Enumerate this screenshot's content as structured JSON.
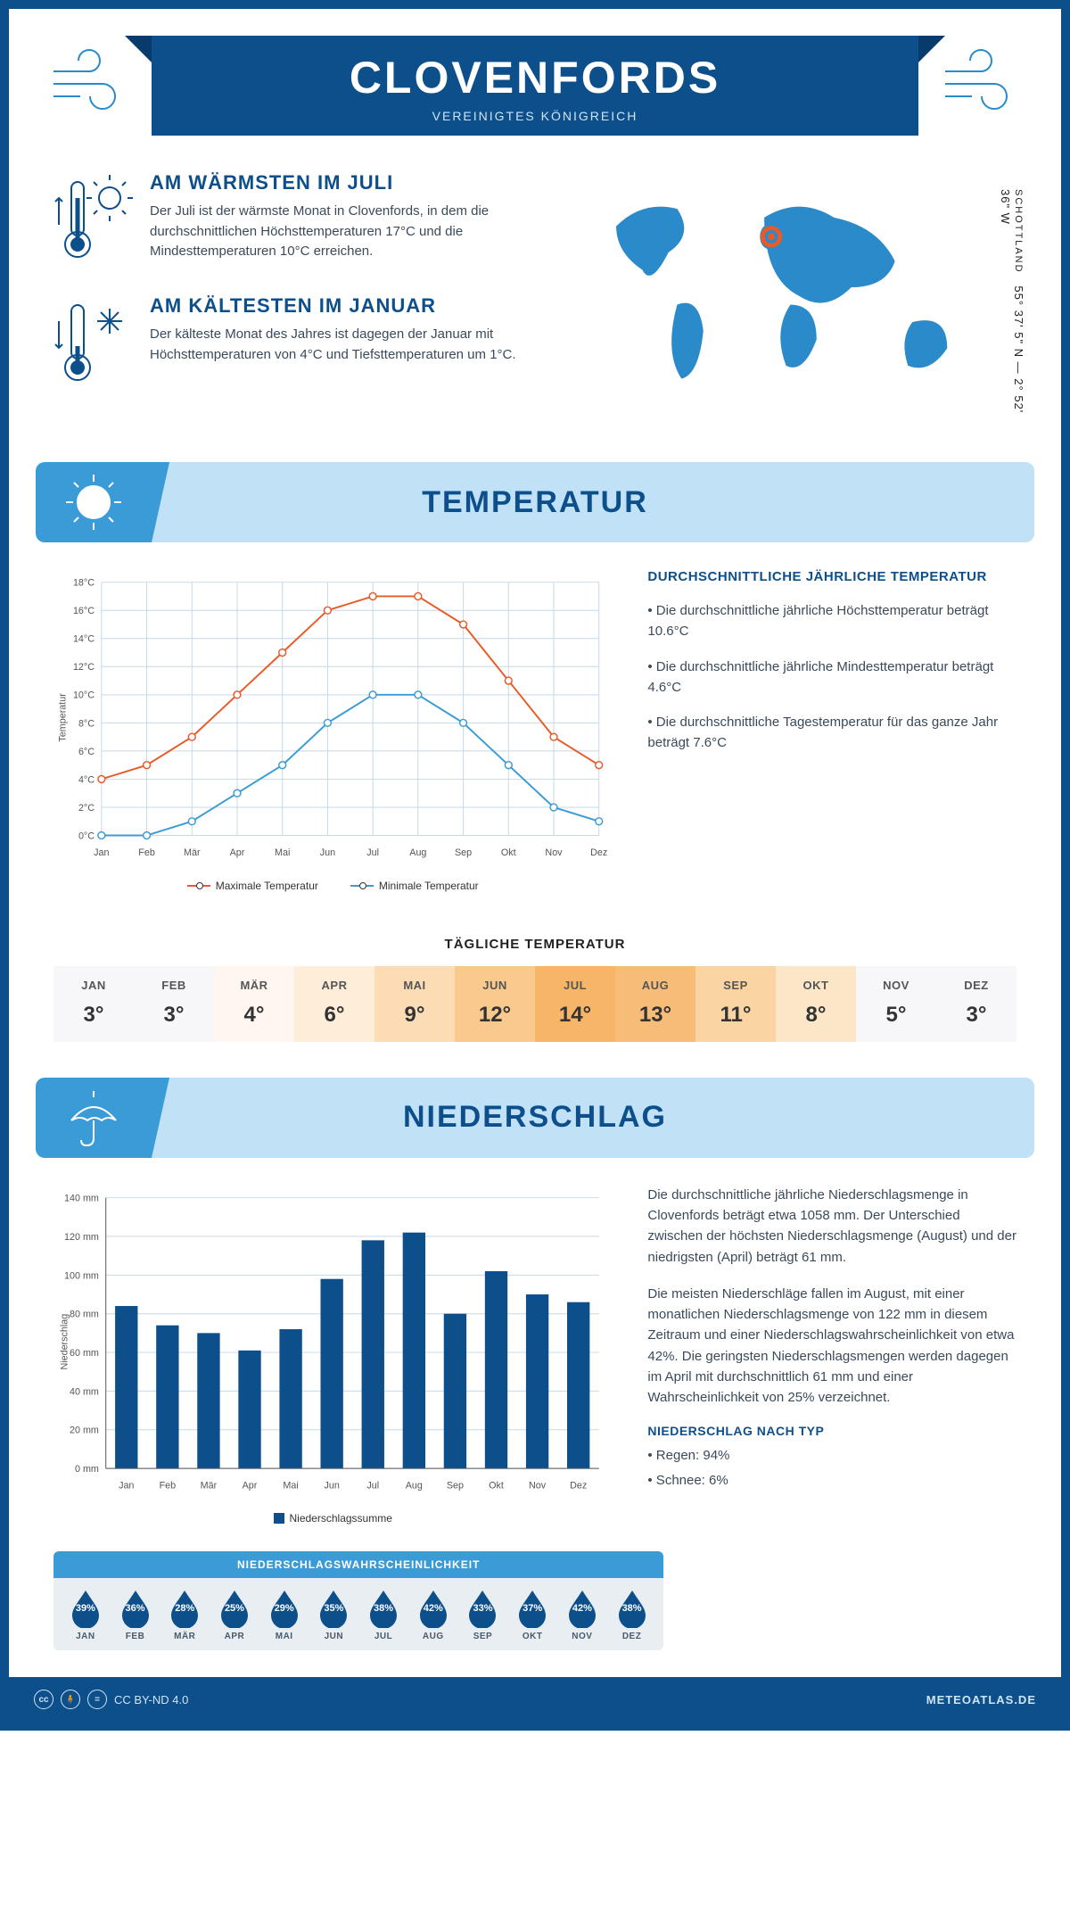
{
  "header": {
    "title": "CLOVENFORDS",
    "subtitle": "VEREINIGTES KÖNIGREICH"
  },
  "coords": {
    "lat": "55° 37' 5\" N — 2° 52' 36\" W",
    "country": "SCHOTTLAND"
  },
  "intro": {
    "warm": {
      "heading": "AM WÄRMSTEN IM JULI",
      "text": "Der Juli ist der wärmste Monat in Clovenfords, in dem die durchschnittlichen Höchsttemperaturen 17°C und die Mindesttemperaturen 10°C erreichen."
    },
    "cold": {
      "heading": "AM KÄLTESTEN IM JANUAR",
      "text": "Der kälteste Monat des Jahres ist dagegen der Januar mit Höchsttemperaturen von 4°C und Tiefsttemperaturen um 1°C."
    }
  },
  "sections": {
    "temp": "TEMPERATUR",
    "precip": "NIEDERSCHLAG"
  },
  "months": [
    "Jan",
    "Feb",
    "Mär",
    "Apr",
    "Mai",
    "Jun",
    "Jul",
    "Aug",
    "Sep",
    "Okt",
    "Nov",
    "Dez"
  ],
  "months_upper": [
    "JAN",
    "FEB",
    "MÄR",
    "APR",
    "MAI",
    "JUN",
    "JUL",
    "AUG",
    "SEP",
    "OKT",
    "NOV",
    "DEZ"
  ],
  "temp_chart": {
    "type": "line",
    "ylabel": "Temperatur",
    "tick_fontsize": 11,
    "ylim": [
      0,
      18
    ],
    "ytick_step": 2,
    "ysuffix": "°C",
    "grid_color": "#c6d8e8",
    "series": [
      {
        "name": "Maximale Temperatur",
        "color": "#e85a2a",
        "values": [
          4,
          5,
          7,
          10,
          13,
          16,
          17,
          17,
          15,
          11,
          7,
          5
        ]
      },
      {
        "name": "Minimale Temperatur",
        "color": "#3b9bd6",
        "values": [
          0,
          0,
          1,
          3,
          5,
          8,
          10,
          10,
          8,
          5,
          2,
          1
        ]
      }
    ],
    "marker_size": 4,
    "line_width": 2
  },
  "temp_info": {
    "heading": "DURCHSCHNITTLICHE JÄHRLICHE TEMPERATUR",
    "bullets": [
      "• Die durchschnittliche jährliche Höchsttemperatur beträgt 10.6°C",
      "• Die durchschnittliche jährliche Mindesttemperatur beträgt 4.6°C",
      "• Die durchschnittliche Tagestemperatur für das ganze Jahr beträgt 7.6°C"
    ]
  },
  "daily": {
    "title": "TÄGLICHE TEMPERATUR",
    "values": [
      "3°",
      "3°",
      "4°",
      "6°",
      "9°",
      "12°",
      "14°",
      "13°",
      "11°",
      "8°",
      "5°",
      "3°"
    ],
    "bg_colors": [
      "#f7f7fa",
      "#f7f7fa",
      "#fef6ef",
      "#fdedd9",
      "#fbdcb5",
      "#f9c98e",
      "#f6b567",
      "#f7bd78",
      "#fad4a3",
      "#fce6c8",
      "#f7f7fa",
      "#f7f7fa"
    ]
  },
  "precip_chart": {
    "type": "bar",
    "ylabel": "Niederschlag",
    "ylim": [
      0,
      140
    ],
    "ytick_step": 20,
    "ysuffix": " mm",
    "bar_color": "#0d4f8b",
    "grid_color": "#c6d8e8",
    "values": [
      84,
      74,
      70,
      61,
      72,
      98,
      118,
      122,
      80,
      102,
      90,
      86
    ],
    "legend": "Niederschlagssumme"
  },
  "precip_text": {
    "p1": "Die durchschnittliche jährliche Niederschlagsmenge in Clovenfords beträgt etwa 1058 mm. Der Unterschied zwischen der höchsten Niederschlagsmenge (August) und der niedrigsten (April) beträgt 61 mm.",
    "p2": "Die meisten Niederschläge fallen im August, mit einer monatlichen Niederschlagsmenge von 122 mm in diesem Zeitraum und einer Niederschlagswahrscheinlichkeit von etwa 42%. Die geringsten Niederschlagsmengen werden dagegen im April mit durchschnittlich 61 mm und einer Wahrscheinlichkeit von 25% verzeichnet.",
    "type_head": "NIEDERSCHLAG NACH TYP",
    "type_rain": "• Regen: 94%",
    "type_snow": "• Schnee: 6%"
  },
  "prob": {
    "heading": "NIEDERSCHLAGSWAHRSCHEINLICHKEIT",
    "drop_color": "#0d4f8b",
    "values": [
      "39%",
      "36%",
      "28%",
      "25%",
      "29%",
      "35%",
      "38%",
      "42%",
      "33%",
      "37%",
      "42%",
      "38%"
    ]
  },
  "footer": {
    "license": "CC BY-ND 4.0",
    "site": "METEOATLAS.DE"
  }
}
